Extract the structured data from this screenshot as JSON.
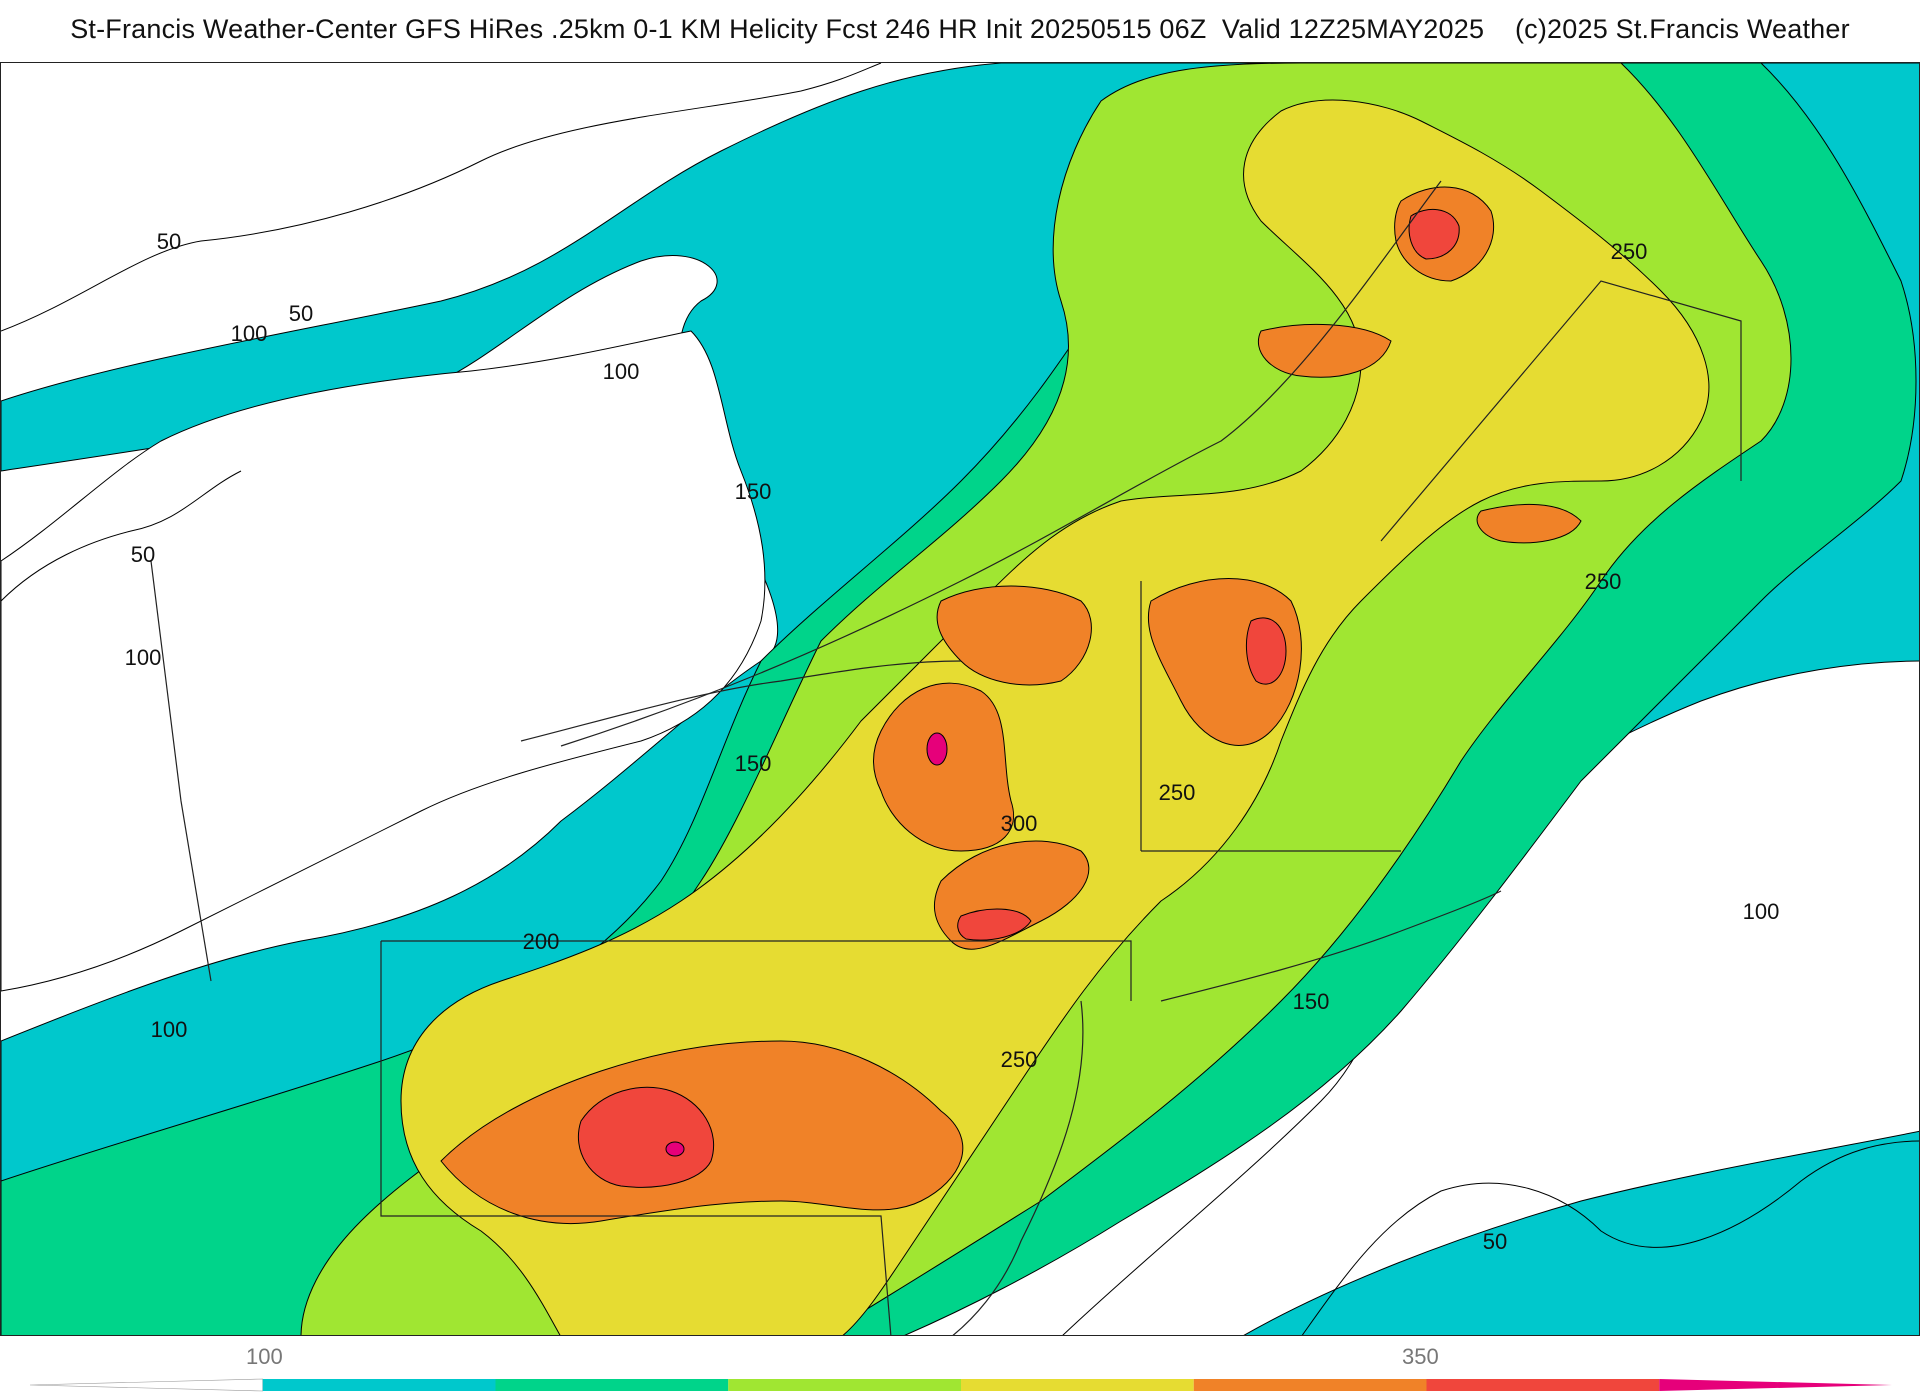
{
  "title": "St-Francis Weather-Center GFS HiRes .25km 0-1 KM Helicity Fcst 246 HR Init 20250515 06Z  Valid 12Z25MAY2025    (c)2025 St.Francis Weather",
  "contour_labels": [
    "50",
    "50",
    "100",
    "100",
    "50",
    "100",
    "150",
    "150",
    "200",
    "300",
    "250",
    "250",
    "250",
    "250",
    "150",
    "100",
    "100",
    "50"
  ],
  "colorbar": {
    "tick_labels": [
      "100",
      "350"
    ],
    "colors": [
      "#ffffff",
      "#00c8cc",
      "#00d48a",
      "#a0e632",
      "#e6dc32",
      "#f08228",
      "#f0463c",
      "#e6007a"
    ]
  },
  "fill_colors": {
    "none": "#ffffff",
    "c100": "#00c8cc",
    "c150": "#00d48a",
    "c200": "#a0e632",
    "c250": "#e6dc32",
    "c300": "#f08228",
    "c350": "#f0463c",
    "c400": "#e6007a"
  }
}
